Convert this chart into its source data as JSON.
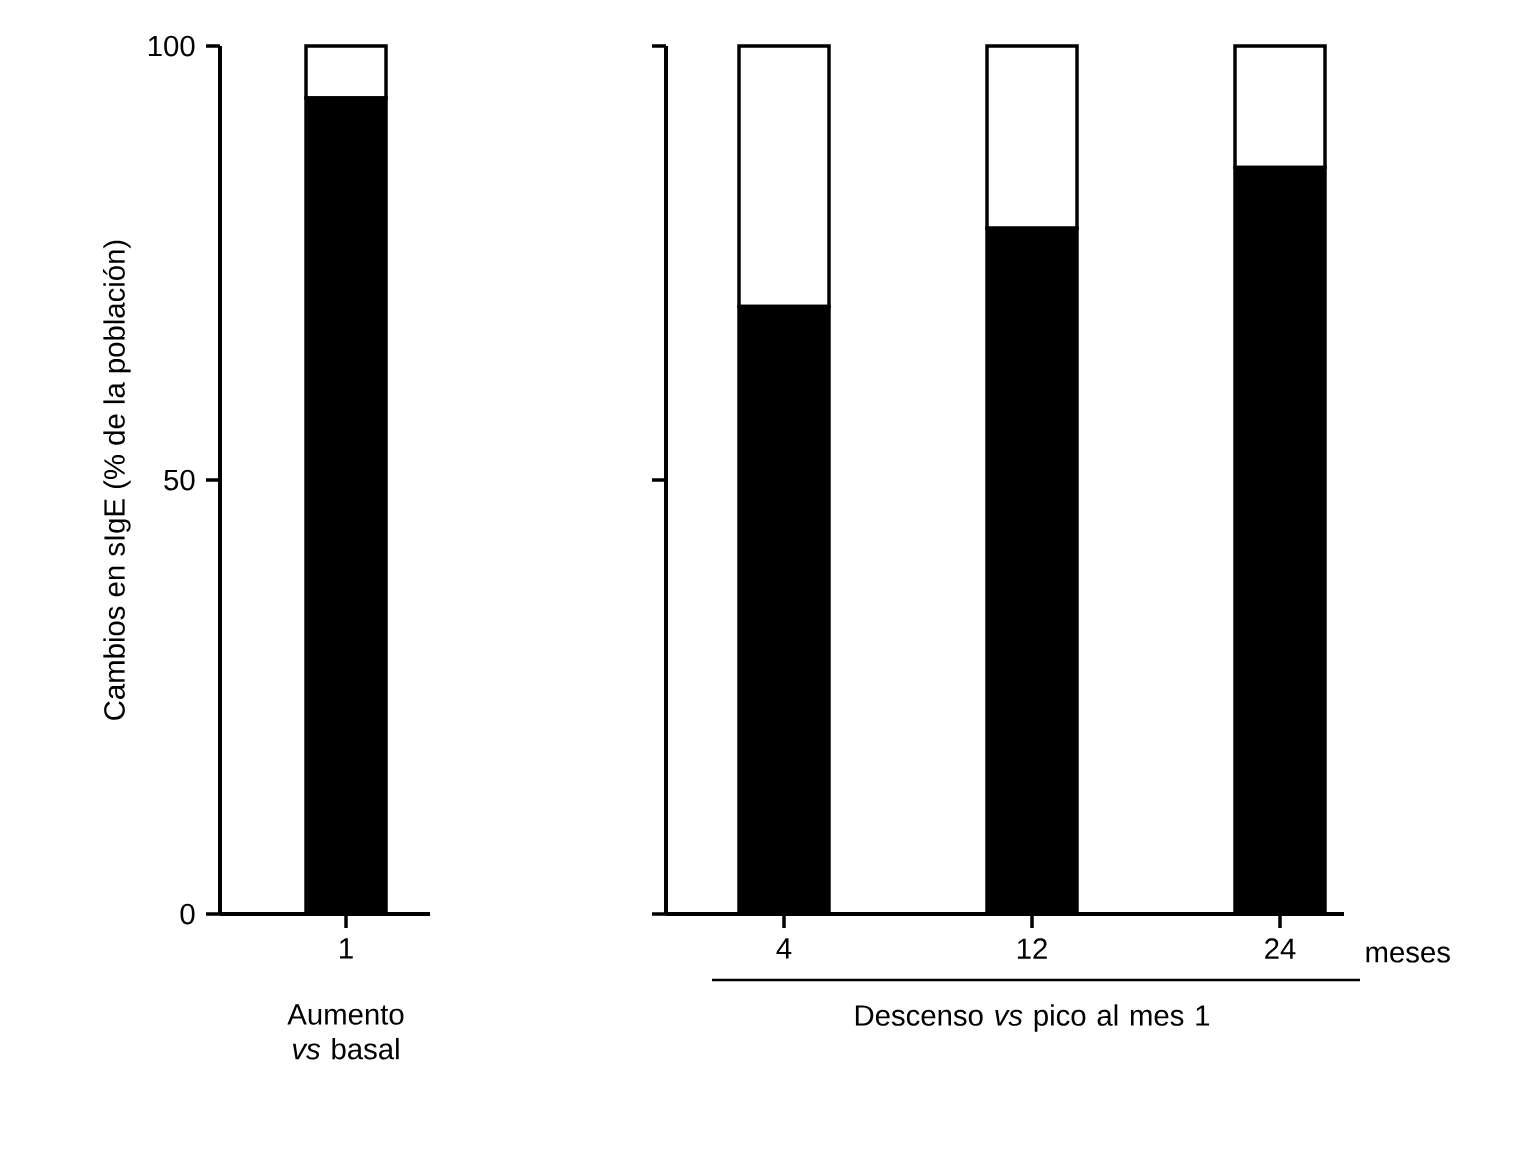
{
  "chart_data": [
    {
      "type": "bar",
      "stacked": true,
      "categories": [
        "1"
      ],
      "xlabel": "Aumento *vs* basal",
      "ylabel": "Cambios en sIgE (% de la población)",
      "ylim": [
        0,
        100
      ],
      "yticks": [
        0,
        50,
        100
      ],
      "series": [
        {
          "color": "#000000",
          "values": [
            94
          ]
        },
        {
          "color": "#ffffff",
          "values": [
            6
          ]
        }
      ]
    },
    {
      "type": "bar",
      "stacked": true,
      "categories": [
        "4",
        "12",
        "24"
      ],
      "xlabel": "Descenso *vs* pico al mes 1",
      "ylim": [
        0,
        100
      ],
      "yticks": [
        0,
        50,
        100
      ],
      "tick_labels": "x",
      "annotations": [
        "meses"
      ],
      "series": [
        {
          "color": "#000000",
          "values": [
            70,
            79,
            86
          ]
        },
        {
          "color": "#ffffff",
          "values": [
            30,
            21,
            14
          ]
        }
      ]
    }
  ]
}
